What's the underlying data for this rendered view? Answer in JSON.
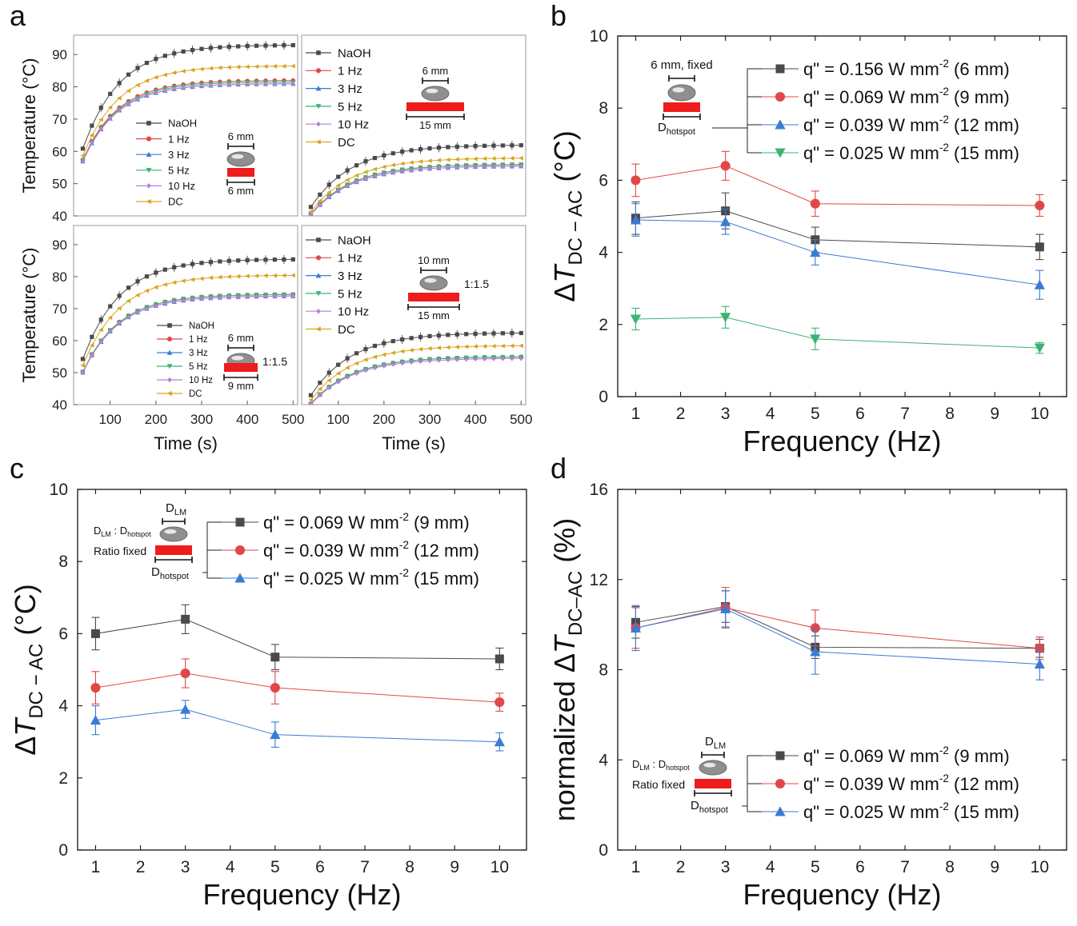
{
  "panel_labels": {
    "a": "a",
    "b": "b",
    "c": "c",
    "d": "d"
  },
  "colors": {
    "naoh": "#4a4a4a",
    "hz1": "#e04848",
    "hz3": "#3a7bd5",
    "hz5": "#3cb371",
    "hz10": "#b97fd6",
    "dc": "#d9a520",
    "heater": "#ee1c1c"
  },
  "chart_data": [
    {
      "id": "a",
      "type": "line",
      "xlabel": "Time (s)",
      "ylabel": "Temperature (°C)",
      "x_ticks": [
        "100",
        "200",
        "300",
        "400",
        "500"
      ],
      "y_ticks": [
        "40",
        "50",
        "60",
        "70",
        "80",
        "90"
      ],
      "xlim": [
        20,
        510
      ],
      "ylim": [
        40,
        96
      ],
      "subplots": [
        {
          "id": "a1",
          "legend": [
            "NaOH",
            "1 Hz",
            "3 Hz",
            "5 Hz",
            "10 Hz",
            "DC"
          ],
          "annotations": {
            "top": "6 mm",
            "bottom": "6 mm"
          },
          "series": [
            {
              "name": "NaOH",
              "T_start": 40,
              "T_final": 93,
              "tau": 80
            },
            {
              "name": "1 Hz",
              "T_start": 40,
              "T_final": 82,
              "tau": 75
            },
            {
              "name": "3 Hz",
              "T_start": 40,
              "T_final": 81,
              "tau": 75
            },
            {
              "name": "5 Hz",
              "T_start": 40,
              "T_final": 81.5,
              "tau": 75
            },
            {
              "name": "10 Hz",
              "T_start": 40,
              "T_final": 81,
              "tau": 75
            },
            {
              "name": "DC",
              "T_start": 40,
              "T_final": 86.5,
              "tau": 78
            }
          ]
        },
        {
          "id": "a2",
          "legend": [
            "NaOH",
            "1 Hz",
            "3 Hz",
            "5 Hz",
            "10 Hz",
            "DC"
          ],
          "annotations": {
            "top": "6 mm",
            "bottom": "15 mm"
          },
          "series": [
            {
              "name": "NaOH",
              "T_start": 32,
              "T_final": 62,
              "tau": 90
            },
            {
              "name": "1 Hz",
              "T_start": 32,
              "T_final": 56,
              "tau": 90
            },
            {
              "name": "3 Hz",
              "T_start": 32,
              "T_final": 55.5,
              "tau": 90
            },
            {
              "name": "5 Hz",
              "T_start": 32,
              "T_final": 56,
              "tau": 90
            },
            {
              "name": "10 Hz",
              "T_start": 32,
              "T_final": 55.5,
              "tau": 90
            },
            {
              "name": "DC",
              "T_start": 32,
              "T_final": 58,
              "tau": 90
            }
          ]
        },
        {
          "id": "a3",
          "legend": [
            "NaOH",
            "1 Hz",
            "3 Hz",
            "5 Hz",
            "10 Hz",
            "DC"
          ],
          "annotations": {
            "top": "6 mm",
            "ratio": "1:1.5",
            "bottom": "9 mm"
          },
          "series": [
            {
              "name": "NaOH",
              "T_start": 34,
              "T_final": 85.5,
              "tau": 80
            },
            {
              "name": "1 Hz",
              "T_start": 34,
              "T_final": 74.5,
              "tau": 78
            },
            {
              "name": "3 Hz",
              "T_start": 34,
              "T_final": 74,
              "tau": 78
            },
            {
              "name": "5 Hz",
              "T_start": 34,
              "T_final": 74.5,
              "tau": 78
            },
            {
              "name": "10 Hz",
              "T_start": 34,
              "T_final": 74,
              "tau": 78
            },
            {
              "name": "DC",
              "T_start": 34,
              "T_final": 80.5,
              "tau": 80
            }
          ]
        },
        {
          "id": "a4",
          "legend": [
            "NaOH",
            "1 Hz",
            "3 Hz",
            "5 Hz",
            "10 Hz",
            "DC"
          ],
          "annotations": {
            "top": "10 mm",
            "ratio": "1:1.5",
            "bottom": "15 mm"
          },
          "series": [
            {
              "name": "NaOH",
              "T_start": 32,
              "T_final": 62.5,
              "tau": 90
            },
            {
              "name": "1 Hz",
              "T_start": 32,
              "T_final": 55,
              "tau": 90
            },
            {
              "name": "3 Hz",
              "T_start": 32,
              "T_final": 55,
              "tau": 90
            },
            {
              "name": "5 Hz",
              "T_start": 32,
              "T_final": 55,
              "tau": 90
            },
            {
              "name": "10 Hz",
              "T_start": 32,
              "T_final": 54.5,
              "tau": 90
            },
            {
              "name": "DC",
              "T_start": 32,
              "T_final": 58.5,
              "tau": 90
            }
          ]
        }
      ]
    },
    {
      "id": "b",
      "type": "line",
      "xlabel": "Frequency (Hz)",
      "ylabel_prefix": "ΔT",
      "ylabel_sub": "DC − AC",
      "ylabel_unit": "(°C)",
      "xlim": [
        0.6,
        10.6
      ],
      "ylim": [
        0,
        10
      ],
      "x_ticks": [
        "1",
        "2",
        "3",
        "4",
        "5",
        "6",
        "7",
        "8",
        "9",
        "10"
      ],
      "y_ticks": [
        "0",
        "2",
        "4",
        "6",
        "8",
        "10"
      ],
      "x": [
        1,
        3,
        5,
        10
      ],
      "inset": {
        "top": "6 mm, fixed",
        "bottom": "D",
        "bottom_sub": "hotspot"
      },
      "series": [
        {
          "name": "q\" = 0.156 W mm",
          "sup": "-2",
          "tail": " (6 mm)",
          "marker": "square",
          "color_key": "naoh",
          "values": [
            4.95,
            5.15,
            4.35,
            4.15
          ],
          "errors": [
            0.45,
            0.5,
            0.35,
            0.35
          ]
        },
        {
          "name": "q\" = 0.069 W mm",
          "sup": "-2",
          "tail": " (9 mm)",
          "marker": "circle",
          "color_key": "hz1",
          "values": [
            6.0,
            6.4,
            5.35,
            5.3
          ],
          "errors": [
            0.45,
            0.4,
            0.35,
            0.3
          ]
        },
        {
          "name": "q\" = 0.039 W mm",
          "sup": "-2",
          "tail": " (12 mm)",
          "marker": "triangle-up",
          "color_key": "hz3",
          "values": [
            4.9,
            4.85,
            4.0,
            3.1
          ],
          "errors": [
            0.45,
            0.35,
            0.35,
            0.4
          ]
        },
        {
          "name": "q\" = 0.025 W mm",
          "sup": "-2",
          "tail": " (15 mm)",
          "marker": "triangle-down",
          "color_key": "hz5",
          "values": [
            2.15,
            2.2,
            1.6,
            1.35
          ],
          "errors": [
            0.3,
            0.3,
            0.3,
            0.15
          ]
        }
      ]
    },
    {
      "id": "c",
      "type": "line",
      "xlabel": "Frequency (Hz)",
      "ylabel_prefix": "ΔT",
      "ylabel_sub": "DC − AC",
      "ylabel_unit": "(°C)",
      "xlim": [
        0.6,
        10.6
      ],
      "ylim": [
        0,
        10
      ],
      "x_ticks": [
        "1",
        "2",
        "3",
        "4",
        "5",
        "6",
        "7",
        "8",
        "9",
        "10"
      ],
      "y_ticks": [
        "0",
        "2",
        "4",
        "6",
        "8",
        "10"
      ],
      "x": [
        1,
        3,
        5,
        10
      ],
      "inset": {
        "top": "D",
        "top_sub": "LM",
        "ratio_a": "D",
        "ratio_a_sub": "LM",
        "ratio_sep": " : ",
        "ratio_b": "D",
        "ratio_b_sub": "hotspot",
        "fixed": "Ratio fixed",
        "bottom": "D",
        "bottom_sub": "hotspot"
      },
      "series": [
        {
          "name": "q\" = 0.069 W mm",
          "sup": "-2",
          "tail": " (9 mm)",
          "marker": "square",
          "color_key": "naoh",
          "values": [
            6.0,
            6.4,
            5.35,
            5.3
          ],
          "errors": [
            0.45,
            0.4,
            0.35,
            0.3
          ]
        },
        {
          "name": "q\" = 0.039 W mm",
          "sup": "-2",
          "tail": " (12 mm)",
          "marker": "circle",
          "color_key": "hz1",
          "values": [
            4.5,
            4.9,
            4.5,
            4.1
          ],
          "errors": [
            0.45,
            0.4,
            0.45,
            0.25
          ]
        },
        {
          "name": "q\" = 0.025 W mm",
          "sup": "-2",
          "tail": " (15 mm)",
          "marker": "triangle-up",
          "color_key": "hz3",
          "values": [
            3.6,
            3.9,
            3.2,
            3.0
          ],
          "errors": [
            0.4,
            0.25,
            0.35,
            0.25
          ]
        }
      ]
    },
    {
      "id": "d",
      "type": "line",
      "xlabel": "Frequency (Hz)",
      "ylabel_prefix": "normalized ΔT",
      "ylabel_sub": "DC–AC",
      "ylabel_unit": "(%)",
      "xlim": [
        0.6,
        10.6
      ],
      "ylim": [
        0,
        16
      ],
      "x_ticks": [
        "1",
        "2",
        "3",
        "4",
        "5",
        "6",
        "7",
        "8",
        "9",
        "10"
      ],
      "y_ticks": [
        "0",
        "4",
        "8",
        "12",
        "16"
      ],
      "x": [
        1,
        3,
        5,
        10
      ],
      "inset": {
        "top": "D",
        "top_sub": "LM",
        "ratio_a": "D",
        "ratio_a_sub": "LM",
        "ratio_sep": " : ",
        "ratio_b": "D",
        "ratio_b_sub": "hotspot",
        "fixed": "Ratio fixed",
        "bottom": "D",
        "bottom_sub": "hotspot"
      },
      "series": [
        {
          "name": "q\" = 0.069 W mm",
          "sup": "-2",
          "tail": " (9 mm)",
          "marker": "square",
          "color_key": "naoh",
          "values": [
            10.1,
            10.8,
            9.0,
            8.95
          ],
          "errors": [
            0.7,
            0.7,
            0.5,
            0.4
          ]
        },
        {
          "name": "q\" = 0.039 W mm",
          "sup": "-2",
          "tail": " (12 mm)",
          "marker": "circle",
          "color_key": "hz1",
          "values": [
            9.85,
            10.75,
            9.85,
            8.95
          ],
          "errors": [
            0.9,
            0.9,
            0.8,
            0.5
          ]
        },
        {
          "name": "q\" = 0.025 W mm",
          "sup": "-2",
          "tail": " (15 mm)",
          "marker": "triangle-up",
          "color_key": "hz3",
          "values": [
            9.85,
            10.7,
            8.8,
            8.25
          ],
          "errors": [
            1.0,
            0.8,
            1.0,
            0.7
          ]
        }
      ]
    }
  ]
}
